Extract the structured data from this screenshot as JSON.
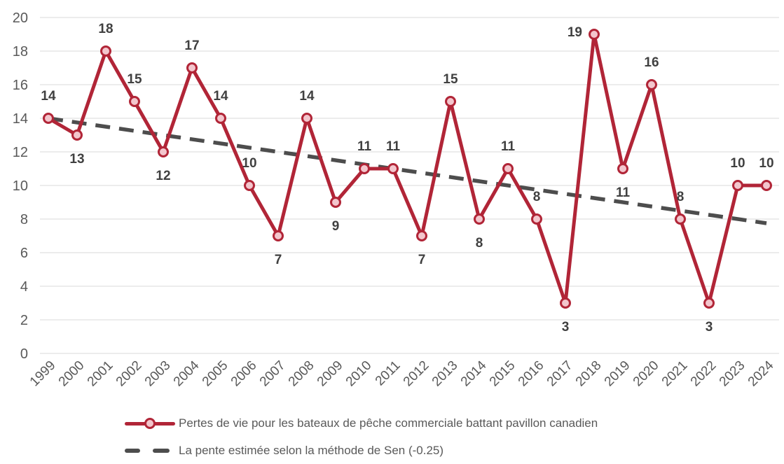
{
  "colors": {
    "series_red": "#B12537",
    "marker_fill": "#F3C6CD",
    "trend_gray": "#4D4D4D",
    "gridline": "#D9D9D9",
    "axis_text": "#595959",
    "data_label": "#404040",
    "legend_text": "#595959",
    "background": "#FFFFFF"
  },
  "chart_data": {
    "type": "line",
    "title": "",
    "xlabel": "",
    "ylabel": "",
    "x": [
      1999,
      2000,
      2001,
      2002,
      2003,
      2004,
      2005,
      2006,
      2007,
      2008,
      2009,
      2010,
      2011,
      2012,
      2013,
      2014,
      2015,
      2016,
      2017,
      2018,
      2019,
      2020,
      2021,
      2022,
      2023,
      2024
    ],
    "series": [
      {
        "name": "Pertes de vie pour les bateaux de pêche commerciale battant pavillon canadien",
        "type": "line",
        "values": [
          14,
          13,
          18,
          15,
          12,
          17,
          14,
          10,
          7,
          14,
          9,
          11,
          11,
          7,
          15,
          8,
          11,
          8,
          3,
          19,
          11,
          16,
          8,
          3,
          10,
          10
        ],
        "color": "#B12537",
        "marker": "circle",
        "marker_fill": "#F3C6CD"
      },
      {
        "name": "La pente estimée selon la méthode de Sen (-0.25)",
        "type": "trend",
        "slope_per_year": -0.25,
        "start_value": 14.0,
        "end_value": 7.75,
        "color": "#4D4D4D",
        "style": "dashed"
      }
    ],
    "data_label_positions": [
      "above",
      "below",
      "above",
      "above",
      "below",
      "above",
      "above",
      "above",
      "below",
      "above",
      "below",
      "above",
      "above",
      "below",
      "above",
      "below",
      "above",
      "above",
      "below",
      "left",
      "below",
      "above",
      "above",
      "below",
      "above",
      "above"
    ],
    "ylim": [
      0,
      20
    ],
    "ytick_step": 2,
    "grid": "horizontal",
    "legend_position": "bottom"
  },
  "legend": {
    "items": [
      {
        "label": "Pertes de vie pour les bateaux de pêche commerciale battant pavillon canadien",
        "swatch": "red-line-with-marker"
      },
      {
        "label": "La pente estimée selon la méthode de Sen (-0.25)",
        "swatch": "gray-dashed-line"
      }
    ]
  }
}
